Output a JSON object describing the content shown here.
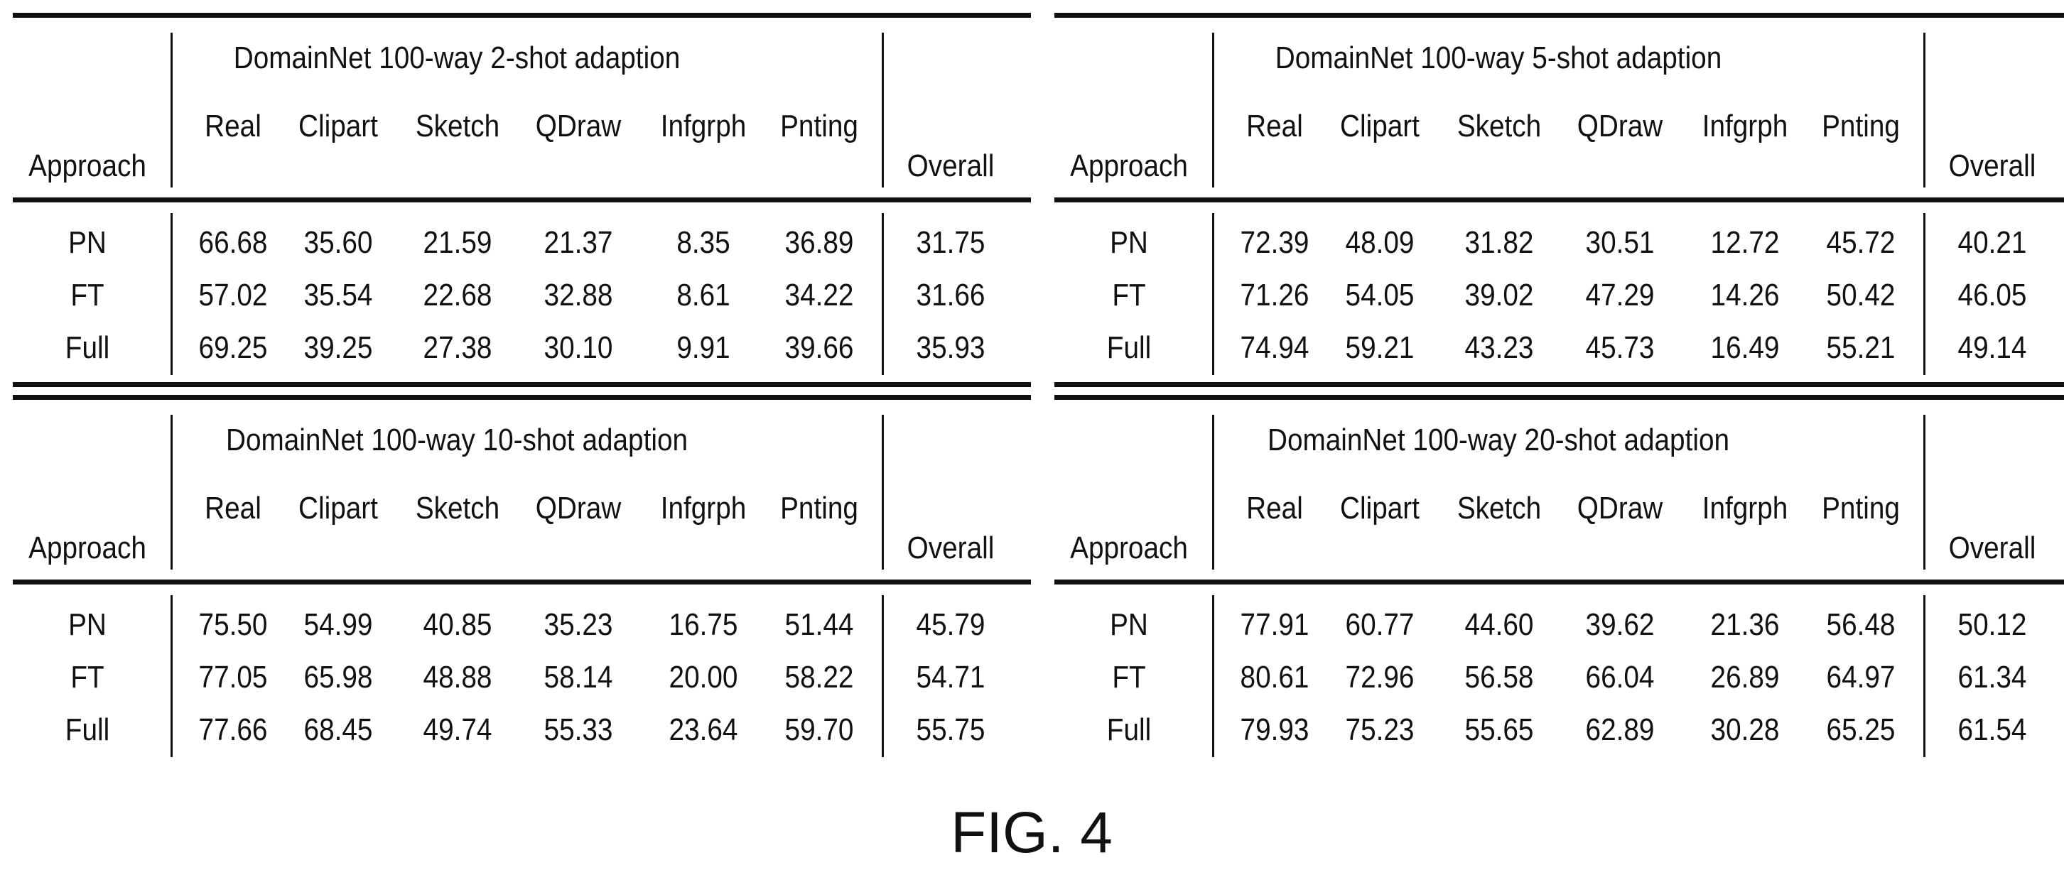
{
  "tables": [
    {
      "title": "DomainNet 100-way 2-shot adaption",
      "approach_header": "Approach",
      "columns": [
        "Real",
        "Clipart",
        "Sketch",
        "QDraw",
        "Infgrph",
        "Pnting"
      ],
      "overall_header": "Overall",
      "rows": [
        {
          "approach": "PN",
          "values": [
            "66.68",
            "35.60",
            "21.59",
            "21.37",
            "8.35",
            "36.89"
          ],
          "overall": "31.75"
        },
        {
          "approach": "FT",
          "values": [
            "57.02",
            "35.54",
            "22.68",
            "32.88",
            "8.61",
            "34.22"
          ],
          "overall": "31.66"
        },
        {
          "approach": "Full",
          "values": [
            "69.25",
            "39.25",
            "27.38",
            "30.10",
            "9.91",
            "39.66"
          ],
          "overall": "35.93"
        }
      ]
    },
    {
      "title": "DomainNet 100-way 5-shot adaption",
      "approach_header": "Approach",
      "columns": [
        "Real",
        "Clipart",
        "Sketch",
        "QDraw",
        "Infgrph",
        "Pnting"
      ],
      "overall_header": "Overall",
      "rows": [
        {
          "approach": "PN",
          "values": [
            "72.39",
            "48.09",
            "31.82",
            "30.51",
            "12.72",
            "45.72"
          ],
          "overall": "40.21"
        },
        {
          "approach": "FT",
          "values": [
            "71.26",
            "54.05",
            "39.02",
            "47.29",
            "14.26",
            "50.42"
          ],
          "overall": "46.05"
        },
        {
          "approach": "Full",
          "values": [
            "74.94",
            "59.21",
            "43.23",
            "45.73",
            "16.49",
            "55.21"
          ],
          "overall": "49.14"
        }
      ]
    },
    {
      "title": "DomainNet 100-way 10-shot adaption",
      "approach_header": "Approach",
      "columns": [
        "Real",
        "Clipart",
        "Sketch",
        "QDraw",
        "Infgrph",
        "Pnting"
      ],
      "overall_header": "Overall",
      "rows": [
        {
          "approach": "PN",
          "values": [
            "75.50",
            "54.99",
            "40.85",
            "35.23",
            "16.75",
            "51.44"
          ],
          "overall": "45.79"
        },
        {
          "approach": "FT",
          "values": [
            "77.05",
            "65.98",
            "48.88",
            "58.14",
            "20.00",
            "58.22"
          ],
          "overall": "54.71"
        },
        {
          "approach": "Full",
          "values": [
            "77.66",
            "68.45",
            "49.74",
            "55.33",
            "23.64",
            "59.70"
          ],
          "overall": "55.75"
        }
      ]
    },
    {
      "title": "DomainNet 100-way 20-shot adaption",
      "approach_header": "Approach",
      "columns": [
        "Real",
        "Clipart",
        "Sketch",
        "QDraw",
        "Infgrph",
        "Pnting"
      ],
      "overall_header": "Overall",
      "rows": [
        {
          "approach": "PN",
          "values": [
            "77.91",
            "60.77",
            "44.60",
            "39.62",
            "21.36",
            "56.48"
          ],
          "overall": "50.12"
        },
        {
          "approach": "FT",
          "values": [
            "80.61",
            "72.96",
            "56.58",
            "66.04",
            "26.89",
            "64.97"
          ],
          "overall": "61.34"
        },
        {
          "approach": "Full",
          "values": [
            "79.93",
            "75.23",
            "55.65",
            "62.89",
            "30.28",
            "65.25"
          ],
          "overall": "61.54"
        }
      ]
    }
  ],
  "figure_caption": "FIG. 4"
}
